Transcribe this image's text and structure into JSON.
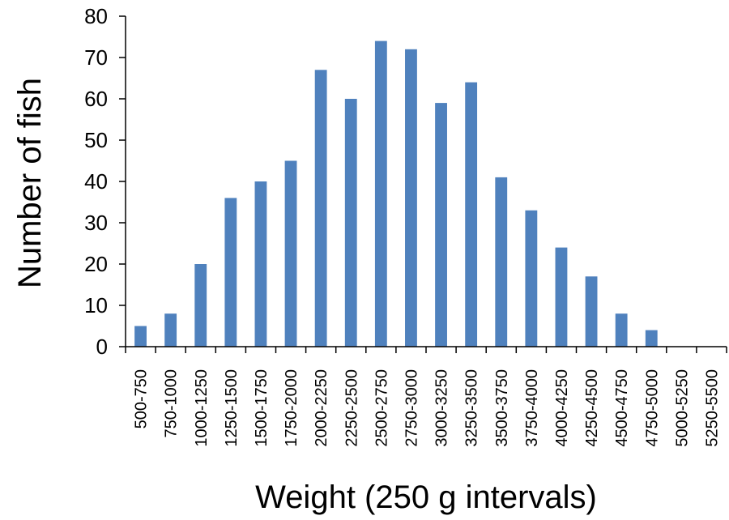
{
  "chart_data": {
    "type": "bar",
    "title": "",
    "xlabel": "Weight (250 g intervals)",
    "ylabel": "Number of fish",
    "categories": [
      "500-750",
      "750-1000",
      "1000-1250",
      "1250-1500",
      "1500-1750",
      "1750-2000",
      "2000-2250",
      "2250-2500",
      "2500-2750",
      "2750-3000",
      "3000-3250",
      "3250-3500",
      "3500-3750",
      "3750-4000",
      "4000-4250",
      "4250-4500",
      "4500-4750",
      "4750-5000",
      "5000-5250",
      "5250-5500"
    ],
    "values": [
      5,
      8,
      20,
      36,
      40,
      45,
      67,
      60,
      74,
      72,
      59,
      64,
      41,
      33,
      24,
      17,
      8,
      4,
      0,
      0
    ],
    "ylim": [
      0,
      80
    ],
    "yticks": [
      0,
      10,
      20,
      30,
      40,
      50,
      60,
      70,
      80
    ],
    "bar_color": "#4F81BD",
    "grid": false,
    "legend": "none"
  }
}
